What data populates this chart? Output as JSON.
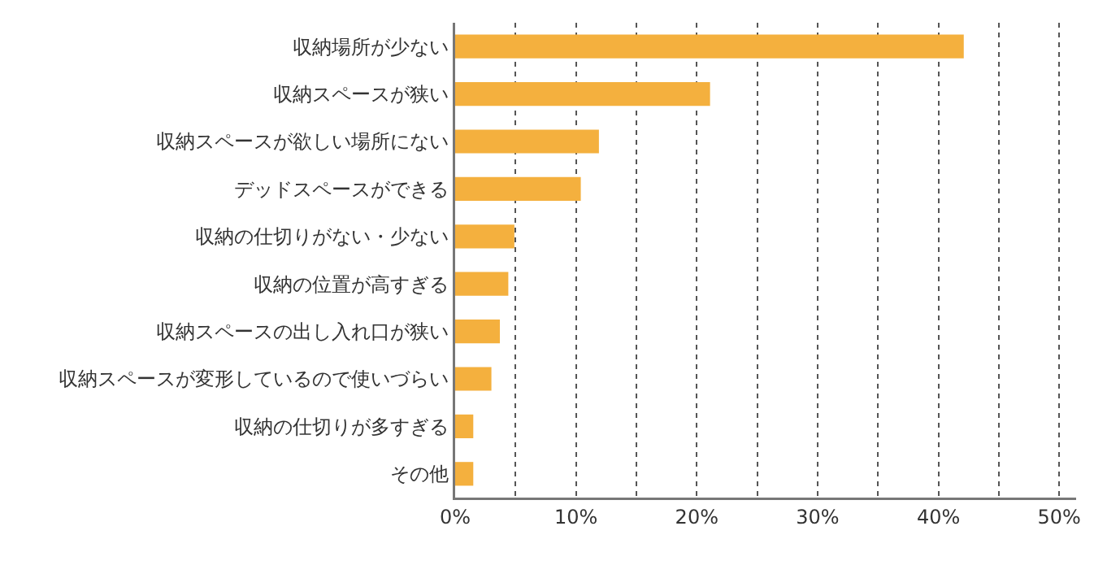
{
  "chart_data": {
    "type": "bar",
    "orientation": "horizontal",
    "categories": [
      "収納場所が少ない",
      "収納スペースが狭い",
      "収納スペースが欲しい場所にない",
      "デッドスペースができる",
      "収納の仕切りがない・少ない",
      "収納の位置が高すぎる",
      "収納スペースの出し入れ口が狭い",
      "収納スペースが変形しているので使いづらい",
      "収納の仕切りが多すぎる",
      "その他"
    ],
    "values": [
      42.1,
      21.1,
      11.9,
      10.4,
      4.9,
      4.4,
      3.7,
      3.0,
      1.5,
      1.5
    ],
    "color": "#f4b03e",
    "xlim": [
      0,
      51.4
    ],
    "xticks": [
      {
        "value": 0,
        "label": "0%"
      },
      {
        "value": 5,
        "label": null
      },
      {
        "value": 10,
        "label": "10%"
      },
      {
        "value": 15,
        "label": null
      },
      {
        "value": 20,
        "label": "20%"
      },
      {
        "value": 25,
        "label": null
      },
      {
        "value": 30,
        "label": "30%"
      },
      {
        "value": 35,
        "label": null
      },
      {
        "value": 40,
        "label": "40%"
      },
      {
        "value": 45,
        "label": null
      },
      {
        "value": 50,
        "label": "50%"
      }
    ],
    "grid": "x"
  }
}
